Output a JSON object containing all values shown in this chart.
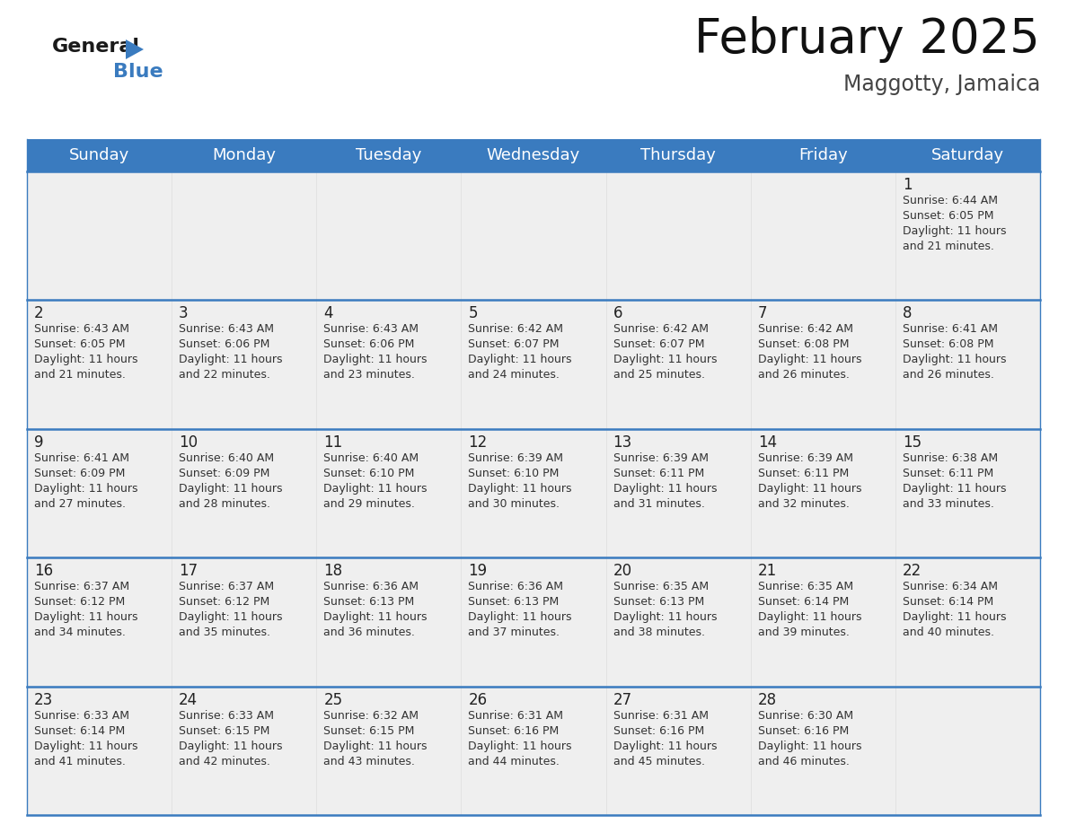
{
  "title": "February 2025",
  "subtitle": "Maggotty, Jamaica",
  "header_bg_color": "#3a7bbf",
  "header_text_color": "#ffffff",
  "cell_bg_color": "#efefef",
  "cell_empty_color": "#efefef",
  "week_line_color": "#3a7bbf",
  "cell_divider_color": "#dddddd",
  "day_names": [
    "Sunday",
    "Monday",
    "Tuesday",
    "Wednesday",
    "Thursday",
    "Friday",
    "Saturday"
  ],
  "title_fontsize": 38,
  "subtitle_fontsize": 17,
  "day_header_fontsize": 13,
  "day_num_fontsize": 12,
  "cell_text_fontsize": 9,
  "logo_general_fontsize": 16,
  "logo_blue_fontsize": 16,
  "weeks": [
    [
      {
        "day": null,
        "sunrise": null,
        "sunset": null,
        "daylight": null
      },
      {
        "day": null,
        "sunrise": null,
        "sunset": null,
        "daylight": null
      },
      {
        "day": null,
        "sunrise": null,
        "sunset": null,
        "daylight": null
      },
      {
        "day": null,
        "sunrise": null,
        "sunset": null,
        "daylight": null
      },
      {
        "day": null,
        "sunrise": null,
        "sunset": null,
        "daylight": null
      },
      {
        "day": null,
        "sunrise": null,
        "sunset": null,
        "daylight": null
      },
      {
        "day": 1,
        "sunrise": "6:44 AM",
        "sunset": "6:05 PM",
        "daylight": "11 hours and 21 minutes."
      }
    ],
    [
      {
        "day": 2,
        "sunrise": "6:43 AM",
        "sunset": "6:05 PM",
        "daylight": "11 hours and 21 minutes."
      },
      {
        "day": 3,
        "sunrise": "6:43 AM",
        "sunset": "6:06 PM",
        "daylight": "11 hours and 22 minutes."
      },
      {
        "day": 4,
        "sunrise": "6:43 AM",
        "sunset": "6:06 PM",
        "daylight": "11 hours and 23 minutes."
      },
      {
        "day": 5,
        "sunrise": "6:42 AM",
        "sunset": "6:07 PM",
        "daylight": "11 hours and 24 minutes."
      },
      {
        "day": 6,
        "sunrise": "6:42 AM",
        "sunset": "6:07 PM",
        "daylight": "11 hours and 25 minutes."
      },
      {
        "day": 7,
        "sunrise": "6:42 AM",
        "sunset": "6:08 PM",
        "daylight": "11 hours and 26 minutes."
      },
      {
        "day": 8,
        "sunrise": "6:41 AM",
        "sunset": "6:08 PM",
        "daylight": "11 hours and 26 minutes."
      }
    ],
    [
      {
        "day": 9,
        "sunrise": "6:41 AM",
        "sunset": "6:09 PM",
        "daylight": "11 hours and 27 minutes."
      },
      {
        "day": 10,
        "sunrise": "6:40 AM",
        "sunset": "6:09 PM",
        "daylight": "11 hours and 28 minutes."
      },
      {
        "day": 11,
        "sunrise": "6:40 AM",
        "sunset": "6:10 PM",
        "daylight": "11 hours and 29 minutes."
      },
      {
        "day": 12,
        "sunrise": "6:39 AM",
        "sunset": "6:10 PM",
        "daylight": "11 hours and 30 minutes."
      },
      {
        "day": 13,
        "sunrise": "6:39 AM",
        "sunset": "6:11 PM",
        "daylight": "11 hours and 31 minutes."
      },
      {
        "day": 14,
        "sunrise": "6:39 AM",
        "sunset": "6:11 PM",
        "daylight": "11 hours and 32 minutes."
      },
      {
        "day": 15,
        "sunrise": "6:38 AM",
        "sunset": "6:11 PM",
        "daylight": "11 hours and 33 minutes."
      }
    ],
    [
      {
        "day": 16,
        "sunrise": "6:37 AM",
        "sunset": "6:12 PM",
        "daylight": "11 hours and 34 minutes."
      },
      {
        "day": 17,
        "sunrise": "6:37 AM",
        "sunset": "6:12 PM",
        "daylight": "11 hours and 35 minutes."
      },
      {
        "day": 18,
        "sunrise": "6:36 AM",
        "sunset": "6:13 PM",
        "daylight": "11 hours and 36 minutes."
      },
      {
        "day": 19,
        "sunrise": "6:36 AM",
        "sunset": "6:13 PM",
        "daylight": "11 hours and 37 minutes."
      },
      {
        "day": 20,
        "sunrise": "6:35 AM",
        "sunset": "6:13 PM",
        "daylight": "11 hours and 38 minutes."
      },
      {
        "day": 21,
        "sunrise": "6:35 AM",
        "sunset": "6:14 PM",
        "daylight": "11 hours and 39 minutes."
      },
      {
        "day": 22,
        "sunrise": "6:34 AM",
        "sunset": "6:14 PM",
        "daylight": "11 hours and 40 minutes."
      }
    ],
    [
      {
        "day": 23,
        "sunrise": "6:33 AM",
        "sunset": "6:14 PM",
        "daylight": "11 hours and 41 minutes."
      },
      {
        "day": 24,
        "sunrise": "6:33 AM",
        "sunset": "6:15 PM",
        "daylight": "11 hours and 42 minutes."
      },
      {
        "day": 25,
        "sunrise": "6:32 AM",
        "sunset": "6:15 PM",
        "daylight": "11 hours and 43 minutes."
      },
      {
        "day": 26,
        "sunrise": "6:31 AM",
        "sunset": "6:16 PM",
        "daylight": "11 hours and 44 minutes."
      },
      {
        "day": 27,
        "sunrise": "6:31 AM",
        "sunset": "6:16 PM",
        "daylight": "11 hours and 45 minutes."
      },
      {
        "day": 28,
        "sunrise": "6:30 AM",
        "sunset": "6:16 PM",
        "daylight": "11 hours and 46 minutes."
      },
      {
        "day": null,
        "sunrise": null,
        "sunset": null,
        "daylight": null
      }
    ]
  ]
}
